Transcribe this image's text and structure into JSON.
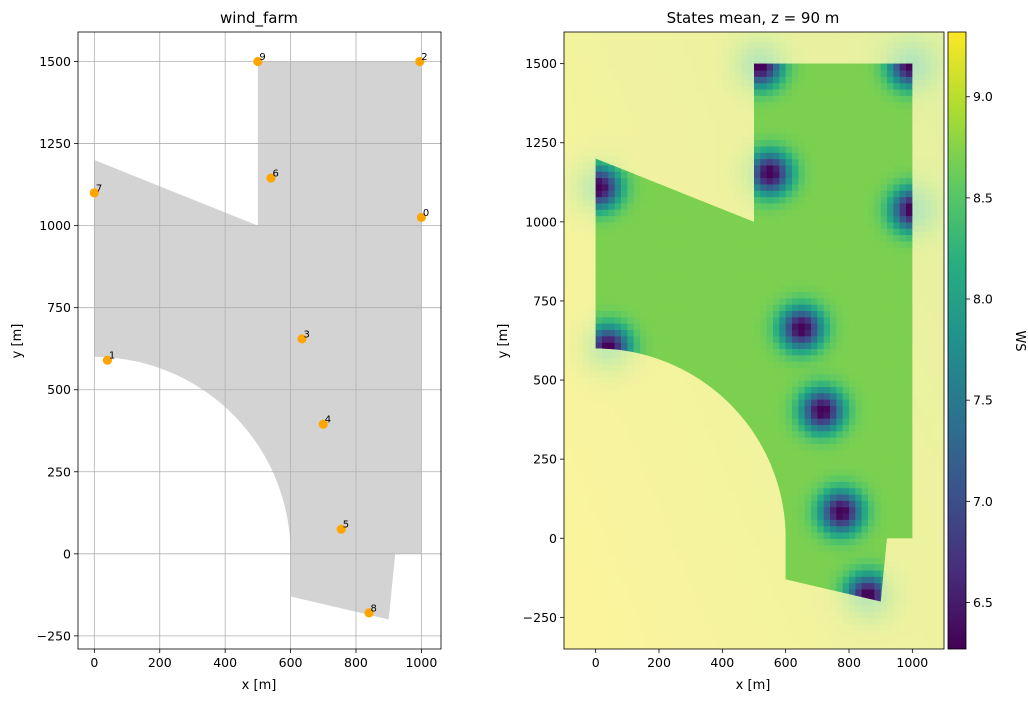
{
  "chart_data": [
    {
      "type": "scatter",
      "title": "wind_farm",
      "xlabel": "x [m]",
      "ylabel": "y [m]",
      "xlim": [
        -50,
        1060
      ],
      "ylim": [
        -290,
        1590
      ],
      "xticks": [
        0,
        200,
        400,
        600,
        800,
        1000
      ],
      "yticks": [
        -250,
        0,
        250,
        500,
        750,
        1000,
        1250,
        1500
      ],
      "grid": true,
      "area_color": "#d3d3d3",
      "marker_color": "#ffa500",
      "points": [
        {
          "label": "0",
          "x": 1000,
          "y": 1025
        },
        {
          "label": "1",
          "x": 40,
          "y": 590
        },
        {
          "label": "2",
          "x": 995,
          "y": 1500
        },
        {
          "label": "3",
          "x": 635,
          "y": 655
        },
        {
          "label": "4",
          "x": 700,
          "y": 395
        },
        {
          "label": "5",
          "x": 755,
          "y": 75
        },
        {
          "label": "6",
          "x": 540,
          "y": 1145
        },
        {
          "label": "7",
          "x": 0,
          "y": 1100
        },
        {
          "label": "8",
          "x": 840,
          "y": -180
        },
        {
          "label": "9",
          "x": 500,
          "y": 1500
        }
      ],
      "boundary": {
        "rect": {
          "x": [
            500,
            1000
          ],
          "y": [
            0,
            1500
          ]
        },
        "top_left_edge": [
          [
            0,
            1200
          ],
          [
            500,
            1000
          ]
        ],
        "arc_center": [
          0,
          0
        ],
        "arc_radius": 600,
        "bottom_edge": [
          [
            600,
            -130
          ],
          [
            900,
            -200
          ]
        ],
        "right_lower_edge": [
          [
            900,
            -200
          ],
          [
            920,
            0
          ]
        ]
      }
    },
    {
      "type": "heatmap",
      "title": "States mean, z =  90 m",
      "xlabel": "x [m]",
      "ylabel": "y [m]",
      "xlim": [
        -100,
        1100
      ],
      "ylim": [
        -350,
        1600
      ],
      "xticks": [
        0,
        200,
        400,
        600,
        800,
        1000
      ],
      "yticks": [
        -250,
        0,
        250,
        500,
        750,
        1000,
        1250,
        1500
      ],
      "colorbar": {
        "label": "WS",
        "range": [
          6.27,
          9.32
        ],
        "ticks": [
          "6.5",
          "7.0",
          "7.5",
          "8.0",
          "8.5",
          "9.0"
        ],
        "tick_values": [
          6.5,
          7.0,
          7.5,
          8.0,
          8.5,
          9.0
        ],
        "colormap": "viridis"
      },
      "free_stream_ws": 9.2,
      "farm_area_ws": 8.7,
      "turbine_wake_min_ws": 6.3,
      "turbines": [
        {
          "x": 1000,
          "y": 1040
        },
        {
          "x": 40,
          "y": 605
        },
        {
          "x": 995,
          "y": 1495
        },
        {
          "x": 650,
          "y": 665
        },
        {
          "x": 715,
          "y": 405
        },
        {
          "x": 775,
          "y": 85
        },
        {
          "x": 550,
          "y": 1155
        },
        {
          "x": 10,
          "y": 1110
        },
        {
          "x": 860,
          "y": -180
        },
        {
          "x": 520,
          "y": 1495
        }
      ]
    }
  ]
}
